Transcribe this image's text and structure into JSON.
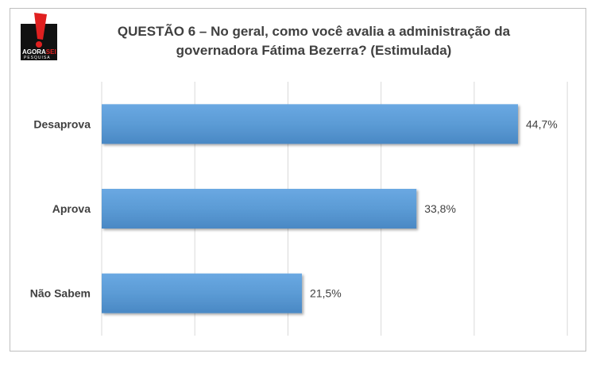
{
  "logo": {
    "brand_top": "AGORA",
    "brand_accent": "SEI",
    "brand_bottom": "PESQUISA",
    "colors": {
      "red": "#e02020",
      "black": "#111111"
    }
  },
  "title": {
    "line1": "QUESTÃO 6 – No geral, como você avalia a administração da",
    "line2": "governadora Fátima Bezerra? (Estimulada)"
  },
  "chart_data": {
    "type": "bar",
    "orientation": "horizontal",
    "title": "QUESTÃO 6 – No geral, como você avalia a administração da governadora Fátima Bezerra? (Estimulada)",
    "categories": [
      "Desaprova",
      "Aprova",
      "Não Sabem"
    ],
    "values": [
      44.7,
      33.8,
      21.5
    ],
    "value_labels": [
      "44,7%",
      "33,8%",
      "21,5%"
    ],
    "xlim": [
      0,
      50
    ],
    "grid": true,
    "bar_color": "#5b9bd5",
    "legend": "none"
  }
}
